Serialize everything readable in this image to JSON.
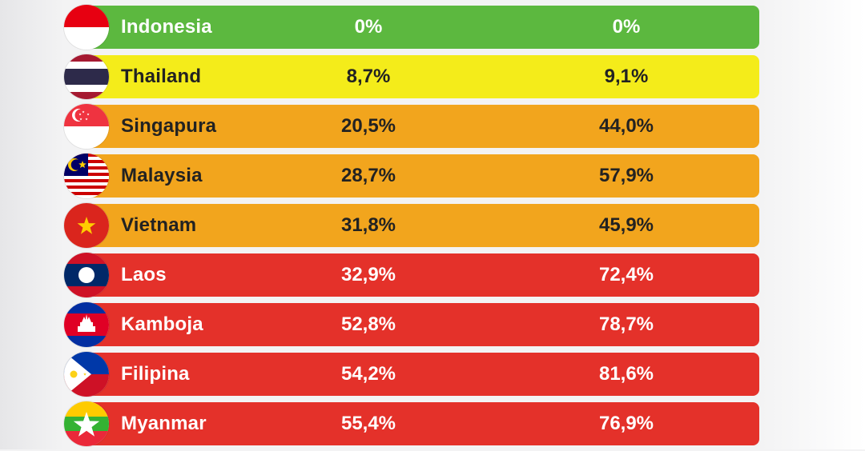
{
  "chart_data": {
    "type": "table",
    "rows": [
      {
        "country": "Indonesia",
        "col1": "0%",
        "col2": "0%",
        "color": "#5cb83f",
        "flag": "indonesia-flag-icon"
      },
      {
        "country": "Thailand",
        "col1": "8,7%",
        "col2": "9,1%",
        "color": "#f4ec1a",
        "flag": "thailand-flag-icon"
      },
      {
        "country": "Singapura",
        "col1": "20,5%",
        "col2": "44,0%",
        "color": "#f2a51d",
        "flag": "singapore-flag-icon"
      },
      {
        "country": "Malaysia",
        "col1": "28,7%",
        "col2": "57,9%",
        "color": "#f2a51d",
        "flag": "malaysia-flag-icon"
      },
      {
        "country": "Vietnam",
        "col1": "31,8%",
        "col2": "45,9%",
        "color": "#f2a51d",
        "flag": "vietnam-flag-icon"
      },
      {
        "country": "Laos",
        "col1": "32,9%",
        "col2": "72,4%",
        "color": "#e4312a",
        "flag": "laos-flag-icon"
      },
      {
        "country": "Kamboja",
        "col1": "52,8%",
        "col2": "78,7%",
        "color": "#e4312a",
        "flag": "cambodia-flag-icon"
      },
      {
        "country": "Filipina",
        "col1": "54,2%",
        "col2": "81,6%",
        "color": "#e4312a",
        "flag": "philippines-flag-icon"
      },
      {
        "country": "Myanmar",
        "col1": "55,4%",
        "col2": "76,9%",
        "color": "#e4312a",
        "flag": "myanmar-flag-icon"
      }
    ]
  },
  "colors": {
    "green": "#5cb83f",
    "yellow": "#f4ec1a",
    "orange": "#f2a51d",
    "red": "#e4312a",
    "background": "#f3f3f4"
  }
}
